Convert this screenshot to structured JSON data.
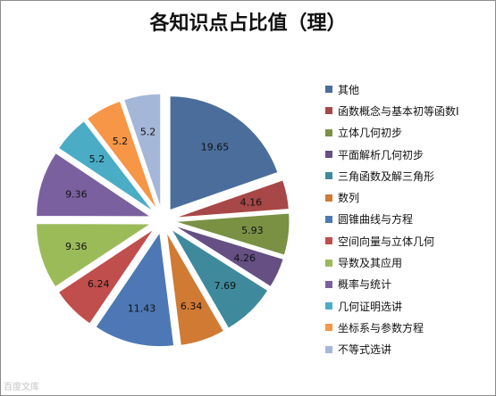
{
  "chart_data": {
    "type": "pie",
    "title": "各知识点占比值（理）",
    "legend_position": "right",
    "slices": [
      {
        "label": "其他",
        "value": 19.65,
        "color": "#4a6d9c"
      },
      {
        "label": "函数概念与基本初等函数Ⅰ",
        "value": 4.16,
        "color": "#a84747"
      },
      {
        "label": "立体几何初步",
        "value": 5.93,
        "color": "#7a9144"
      },
      {
        "label": "平面解析几何初步",
        "value": 4.26,
        "color": "#654f83"
      },
      {
        "label": "三角函数及解三角形",
        "value": 7.69,
        "color": "#3e8a9c"
      },
      {
        "label": "数列",
        "value": 6.34,
        "color": "#d07a34"
      },
      {
        "label": "圆锥曲线与方程",
        "value": 11.43,
        "color": "#4d78b5"
      },
      {
        "label": "空间向量与立体几何",
        "value": 6.24,
        "color": "#c04e4c"
      },
      {
        "label": "导数及其应用",
        "value": 9.36,
        "color": "#9bbb59"
      },
      {
        "label": "概率与统计",
        "value": 9.36,
        "color": "#7b60a0"
      },
      {
        "label": "几何证明选讲",
        "value": 5.2,
        "color": "#4bacc6"
      },
      {
        "label": "坐标系与参数方程",
        "value": 5.2,
        "color": "#f79646"
      },
      {
        "label": "不等式选讲",
        "value": 5.2,
        "color": "#a5b7d8"
      }
    ]
  },
  "watermark": "百度文库"
}
